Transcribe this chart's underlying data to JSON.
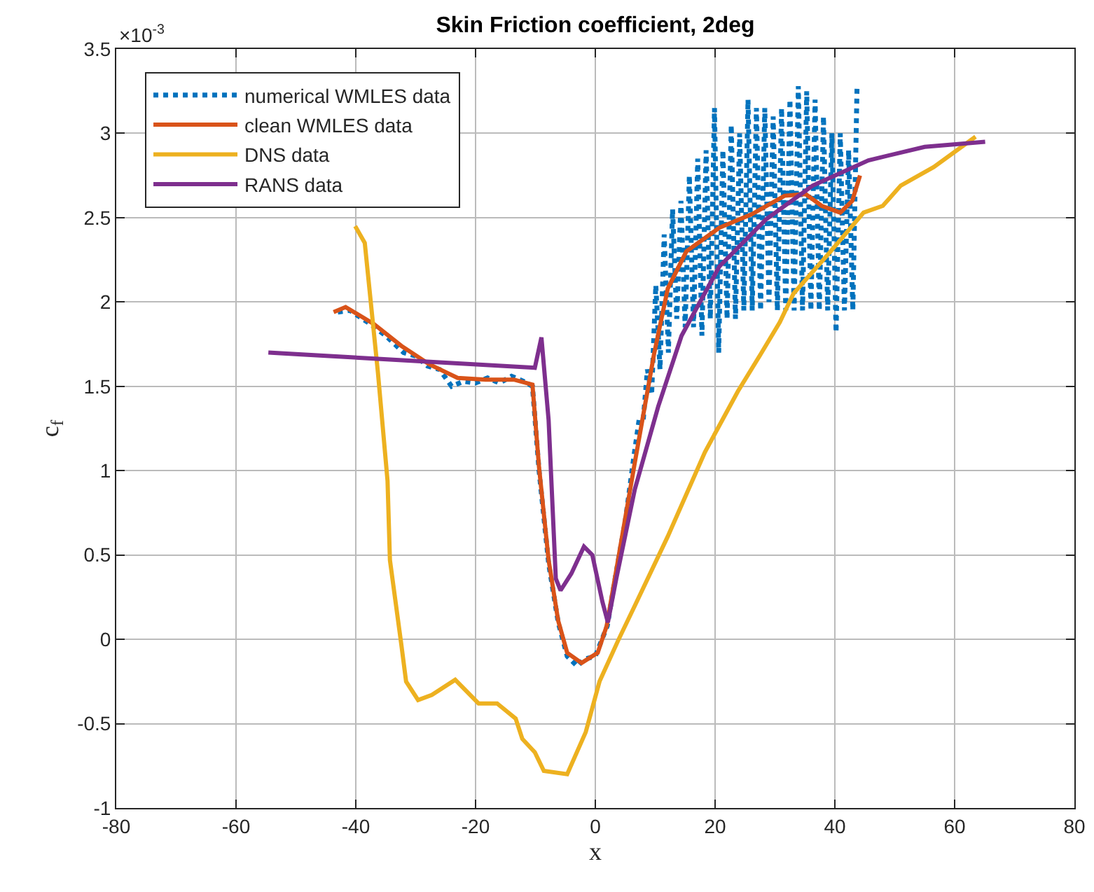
{
  "chart_data": {
    "type": "line",
    "title": "Skin Friction coefficient, 2deg",
    "xlabel": "x",
    "ylabel": "c$_{f}$",
    "annotations": [
      "×10$^{-3}$"
    ],
    "xlim": [
      -80,
      80
    ],
    "xticks": [
      -80,
      -60,
      -40,
      -20,
      0,
      20,
      40,
      60,
      80
    ],
    "ylim": [
      -1,
      3.5
    ],
    "yticks": [
      -1,
      -0.5,
      0,
      0.5,
      1,
      1.5,
      2,
      2.5,
      3,
      3.5
    ],
    "grid": true,
    "legend": "top left",
    "marker": "none",
    "series": [
      {
        "name": "numerical WMLES data",
        "color": "#0072bd",
        "line_style": "dotted",
        "x": [
          -43,
          -41,
          -38,
          -35,
          -32,
          -30,
          -28,
          -26,
          -24,
          -22,
          -20,
          -18,
          -16,
          -14,
          -12,
          -10.5,
          -9.4,
          -7.8,
          -6.2,
          -4.7,
          -3,
          -2,
          0,
          2,
          3.5,
          5,
          6.5,
          7.3,
          8,
          8.7,
          9.4,
          10.1,
          10.8,
          11.5,
          12.2,
          12.9,
          13.6,
          14.3,
          15,
          15.7,
          16.4,
          17.1,
          17.8,
          18.5,
          19.2,
          19.9,
          20.6,
          21.3,
          22,
          22.7,
          23.4,
          24.1,
          24.8,
          25.5,
          26.2,
          26.9,
          27.6,
          28.3,
          29,
          29.7,
          30.4,
          31.1,
          31.8,
          32.5,
          33.2,
          33.9,
          34.6,
          35.3,
          36,
          36.7,
          37.4,
          38.1,
          38.8,
          39.5,
          40.2,
          40.9,
          41.6,
          42.3,
          43,
          43.7
        ],
        "values": [
          1.94,
          1.95,
          1.88,
          1.8,
          1.7,
          1.68,
          1.62,
          1.6,
          1.5,
          1.53,
          1.52,
          1.55,
          1.52,
          1.56,
          1.53,
          1.5,
          1.0,
          0.45,
          0.1,
          -0.1,
          -0.16,
          -0.12,
          -0.1,
          0.08,
          0.4,
          0.7,
          1.1,
          1.3,
          1.3,
          1.6,
          1.45,
          2.1,
          1.6,
          2.4,
          1.7,
          2.55,
          1.9,
          2.6,
          1.85,
          2.75,
          1.85,
          2.85,
          1.8,
          2.9,
          1.9,
          3.15,
          1.7,
          2.9,
          1.9,
          3.05,
          1.9,
          3.0,
          1.95,
          3.2,
          1.95,
          3.15,
          1.95,
          3.15,
          2.0,
          3.1,
          1.95,
          3.15,
          1.95,
          3.2,
          1.95,
          3.28,
          1.95,
          3.25,
          1.95,
          3.2,
          1.95,
          3.1,
          1.95,
          3.0,
          1.82,
          3.0,
          1.95,
          2.9,
          1.95,
          3.27
        ]
      },
      {
        "name": "clean WMLES data",
        "color": "#d95319",
        "line_style": "solid",
        "x": [
          -43.7,
          -41.7,
          -37,
          -32.4,
          -27.7,
          -23,
          -18.3,
          -13.6,
          -10.5,
          -9.4,
          -7.8,
          -6.2,
          -4.7,
          -2.3,
          0.4,
          1.9,
          3.5,
          6.6,
          9.8,
          12.1,
          15.2,
          20.7,
          26.1,
          31.6,
          35.1,
          37.8,
          40.9,
          42.9,
          44.2
        ],
        "values": [
          1.94,
          1.97,
          1.87,
          1.74,
          1.63,
          1.55,
          1.54,
          1.54,
          1.51,
          1.02,
          0.47,
          0.11,
          -0.08,
          -0.14,
          -0.08,
          0.08,
          0.41,
          1.05,
          1.69,
          2.08,
          2.3,
          2.44,
          2.52,
          2.63,
          2.64,
          2.57,
          2.53,
          2.6,
          2.75
        ]
      },
      {
        "name": "DNS data",
        "color": "#edb120",
        "line_style": "solid",
        "x": [
          -40.1,
          -38.5,
          -36.3,
          -34.7,
          -34.3,
          -32.4,
          -31.6,
          -29.6,
          -27.3,
          -23.4,
          -19.5,
          -16.4,
          -13.3,
          -12.2,
          -10.1,
          -8.6,
          -4.7,
          -1.6,
          0.7,
          3.9,
          6.6,
          12.1,
          18.3,
          23.8,
          27.6,
          30.8,
          33.1,
          39.3,
          44.8,
          48,
          51,
          56.5,
          63.5
        ],
        "values": [
          2.45,
          2.35,
          1.58,
          0.94,
          0.47,
          -0.03,
          -0.25,
          -0.36,
          -0.33,
          -0.24,
          -0.38,
          -0.38,
          -0.47,
          -0.59,
          -0.67,
          -0.78,
          -0.8,
          -0.55,
          -0.25,
          0,
          0.2,
          0.61,
          1.11,
          1.47,
          1.69,
          1.88,
          2.05,
          2.3,
          2.53,
          2.57,
          2.69,
          2.8,
          2.98
        ]
      },
      {
        "name": "RANS data",
        "color": "#7e2f8e",
        "line_style": "solid",
        "x": [
          -54.6,
          -10.1,
          -9,
          -7.8,
          -6.6,
          -5.8,
          -4,
          -1.9,
          -0.5,
          1.2,
          2.1,
          3.5,
          6.6,
          10.5,
          14.4,
          20.7,
          28.5,
          36.3,
          45.6,
          55,
          65.1
        ],
        "values": [
          1.7,
          1.61,
          1.79,
          1.3,
          0.36,
          0.29,
          0.39,
          0.55,
          0.5,
          0.22,
          0.1,
          0.36,
          0.89,
          1.38,
          1.8,
          2.21,
          2.49,
          2.69,
          2.84,
          2.92,
          2.95
        ]
      }
    ]
  }
}
